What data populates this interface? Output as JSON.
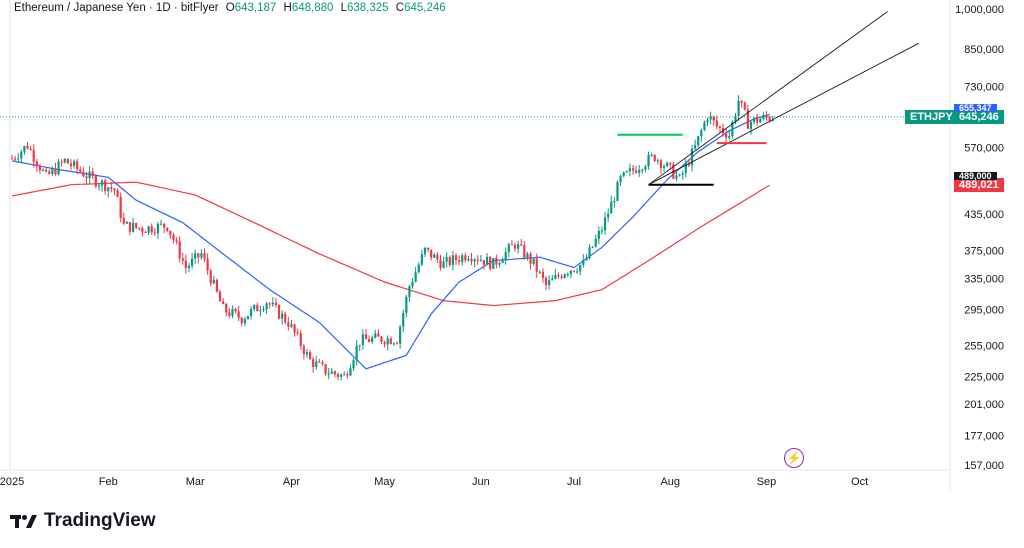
{
  "header": {
    "symbol": "Ethereum / Japanese Yen · 1D · bitFlyer",
    "o_label": "O",
    "o_value": "643,187",
    "h_label": "H",
    "h_value": "648,880",
    "l_label": "L",
    "l_value": "638,325",
    "c_label": "C",
    "c_value": "645,246"
  },
  "brand": {
    "name": "TradingView"
  },
  "price_tags": {
    "symbol_tag": "ETHJPY",
    "last_price": "645,246",
    "hidden_blue": "655,347",
    "ma_red": "489,021",
    "hidden_black": "489,000"
  },
  "colors": {
    "up": "#089981",
    "down": "#f23645",
    "ma_fast": "#2962ff",
    "ma_slow": "#f23645",
    "channel": "#131722",
    "level_green": "#00c853",
    "level_red": "#f23645",
    "level_black": "#000000",
    "price_line": "#089981"
  },
  "chart_data": {
    "type": "candlestick",
    "title": "Ethereum / Japanese Yen · 1D · bitFlyer",
    "y_scale": "log",
    "y_ticks": [
      1000000,
      850000,
      730000,
      645246,
      570000,
      489021,
      435000,
      375000,
      335000,
      295000,
      255000,
      225000,
      201000,
      177000,
      157000
    ],
    "y_tick_labels": [
      "1,000,000",
      "850,000",
      "730,000",
      "645,246",
      "570,000",
      "489,021",
      "435,000",
      "375,000",
      "335,000",
      "295,000",
      "255,000",
      "225,000",
      "201,000",
      "177,000",
      "157,000"
    ],
    "x_tick_labels": [
      "2025",
      "Feb",
      "Mar",
      "Apr",
      "May",
      "Jun",
      "Jul",
      "Aug",
      "Sep",
      "Oct"
    ],
    "x_tick_dates": [
      "2025-01-01",
      "2025-02-01",
      "2025-03-01",
      "2025-04-01",
      "2025-05-01",
      "2025-06-01",
      "2025-07-01",
      "2025-08-01",
      "2025-09-01",
      "2025-10-01"
    ],
    "ma_fast_key": [
      [
        "2025-01-01",
        540000
      ],
      [
        "2025-01-15",
        522000
      ],
      [
        "2025-02-01",
        505000
      ],
      [
        "2025-02-10",
        460000
      ],
      [
        "2025-02-25",
        420000
      ],
      [
        "2025-03-10",
        370000
      ],
      [
        "2025-03-25",
        320000
      ],
      [
        "2025-04-10",
        280000
      ],
      [
        "2025-04-25",
        232000
      ],
      [
        "2025-05-08",
        245000
      ],
      [
        "2025-05-16",
        290000
      ],
      [
        "2025-05-25",
        330000
      ],
      [
        "2025-06-05",
        360000
      ],
      [
        "2025-06-20",
        365000
      ],
      [
        "2025-07-01",
        350000
      ],
      [
        "2025-07-10",
        380000
      ],
      [
        "2025-07-20",
        430000
      ],
      [
        "2025-07-31",
        500000
      ],
      [
        "2025-08-10",
        560000
      ],
      [
        "2025-08-20",
        610000
      ],
      [
        "2025-08-28",
        640000
      ],
      [
        "2025-09-02",
        652000
      ]
    ],
    "ma_slow_key": [
      [
        "2025-01-01",
        468000
      ],
      [
        "2025-01-20",
        490000
      ],
      [
        "2025-02-10",
        495000
      ],
      [
        "2025-03-01",
        470000
      ],
      [
        "2025-03-20",
        420000
      ],
      [
        "2025-04-10",
        370000
      ],
      [
        "2025-05-01",
        330000
      ],
      [
        "2025-05-20",
        306000
      ],
      [
        "2025-06-05",
        300000
      ],
      [
        "2025-06-25",
        306000
      ],
      [
        "2025-07-10",
        320000
      ],
      [
        "2025-07-25",
        360000
      ],
      [
        "2025-08-10",
        410000
      ],
      [
        "2025-08-25",
        460000
      ],
      [
        "2025-09-02",
        489021
      ]
    ],
    "close_key": [
      [
        "2025-01-01",
        545000
      ],
      [
        "2025-01-06",
        575000
      ],
      [
        "2025-01-12",
        505000
      ],
      [
        "2025-01-18",
        540000
      ],
      [
        "2025-01-26",
        505000
      ],
      [
        "2025-02-03",
        480000
      ],
      [
        "2025-02-06",
        415000
      ],
      [
        "2025-02-12",
        410000
      ],
      [
        "2025-02-20",
        415000
      ],
      [
        "2025-02-26",
        350000
      ],
      [
        "2025-03-03",
        370000
      ],
      [
        "2025-03-10",
        295000
      ],
      [
        "2025-03-16",
        285000
      ],
      [
        "2025-03-24",
        305000
      ],
      [
        "2025-03-31",
        280000
      ],
      [
        "2025-04-07",
        240000
      ],
      [
        "2025-04-12",
        230000
      ],
      [
        "2025-04-18",
        225000
      ],
      [
        "2025-04-23",
        260000
      ],
      [
        "2025-04-28",
        262000
      ],
      [
        "2025-05-05",
        262000
      ],
      [
        "2025-05-09",
        325000
      ],
      [
        "2025-05-14",
        375000
      ],
      [
        "2025-05-20",
        355000
      ],
      [
        "2025-05-28",
        370000
      ],
      [
        "2025-06-05",
        355000
      ],
      [
        "2025-06-12",
        385000
      ],
      [
        "2025-06-18",
        355000
      ],
      [
        "2025-06-22",
        325000
      ],
      [
        "2025-06-28",
        345000
      ],
      [
        "2025-07-04",
        355000
      ],
      [
        "2025-07-10",
        410000
      ],
      [
        "2025-07-16",
        500000
      ],
      [
        "2025-07-22",
        530000
      ],
      [
        "2025-07-27",
        550000
      ],
      [
        "2025-08-01",
        520000
      ],
      [
        "2025-08-04",
        500000
      ],
      [
        "2025-08-09",
        570000
      ],
      [
        "2025-08-13",
        650000
      ],
      [
        "2025-08-16",
        620000
      ],
      [
        "2025-08-20",
        600000
      ],
      [
        "2025-08-23",
        690000
      ],
      [
        "2025-08-26",
        630000
      ],
      [
        "2025-08-30",
        640000
      ],
      [
        "2025-09-03",
        645246
      ]
    ],
    "series": [
      {
        "name": "ETHJPY",
        "values": "candles"
      }
    ],
    "levels": [
      {
        "name": "green-level",
        "y": 600000,
        "x": [
          "2025-07-15",
          "2025-08-05"
        ]
      },
      {
        "name": "red-level",
        "y": 580000,
        "x": [
          "2025-08-16",
          "2025-09-01"
        ]
      },
      {
        "name": "black-level",
        "y": 490000,
        "x": [
          "2025-07-25",
          "2025-08-15"
        ]
      }
    ],
    "channel_lines": [
      {
        "from": [
          "2025-07-25",
          490000
        ],
        "to": [
          "2025-10-10",
          990000
        ]
      },
      {
        "from": [
          "2025-07-25",
          490000
        ],
        "to": [
          "2025-10-20",
          870000
        ]
      }
    ],
    "grid": false,
    "legend": "none"
  }
}
